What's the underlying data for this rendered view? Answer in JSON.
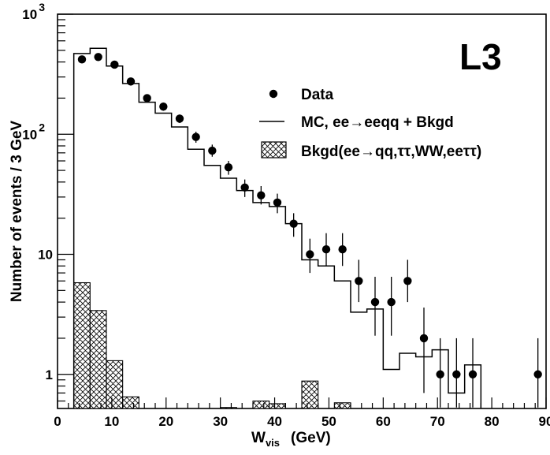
{
  "chart_data": {
    "type": "histogram",
    "experiment_label": "L3",
    "xlabel": {
      "main": "W",
      "sub": "vis",
      "unit": "(GeV)"
    },
    "ylabel": "Number of events / 3 GeV",
    "xlim": [
      0,
      90
    ],
    "ylim": [
      0.52,
      1000
    ],
    "y_scale": "log",
    "x_ticks": [
      0,
      10,
      20,
      30,
      40,
      50,
      60,
      70,
      80,
      90
    ],
    "x_tick_labels": [
      "0",
      "10",
      "20",
      "30",
      "40",
      "50",
      "60",
      "70",
      "80",
      "90"
    ],
    "y_ticks": [
      {
        "value": 1,
        "label": "1",
        "exp": ""
      },
      {
        "value": 10,
        "label": "10",
        "exp": ""
      },
      {
        "value": 100,
        "label": "10",
        "exp": "2"
      },
      {
        "value": 1000,
        "label": "10",
        "exp": "3"
      }
    ],
    "bin_width": 3,
    "legend": {
      "position": "upper-right",
      "entries": [
        {
          "marker": "dot",
          "label": "Data"
        },
        {
          "marker": "line",
          "label": "MC, ee→eeqq + Bkgd"
        },
        {
          "marker": "hatched-box",
          "label": "Bkgd(ee→qq,ττ,WW,eeττ)"
        }
      ]
    },
    "series": [
      {
        "key": "data",
        "style": "points-with-errors",
        "x": [
          4.5,
          7.5,
          10.5,
          13.5,
          16.5,
          19.5,
          22.5,
          25.5,
          28.5,
          31.5,
          34.5,
          37.5,
          40.5,
          43.5,
          46.5,
          49.5,
          52.5,
          55.5,
          58.5,
          61.5,
          64.5,
          67.5,
          70.5,
          73.5,
          76.5,
          88.5
        ],
        "y": [
          420,
          440,
          380,
          275,
          200,
          170,
          135,
          95,
          73,
          53,
          36,
          31,
          27,
          18,
          10,
          11,
          11,
          6,
          4,
          4,
          6,
          2,
          1,
          1,
          1,
          1
        ],
        "y_low": [
          400,
          419,
          361,
          259,
          186,
          157,
          124,
          85,
          65,
          46,
          30,
          26,
          22,
          14,
          7,
          8,
          8,
          4,
          2.1,
          2.1,
          4,
          0.7,
          0.53,
          0.53,
          0.53,
          0.53
        ],
        "y_high": [
          440,
          461,
          399,
          291,
          214,
          183,
          146,
          105,
          82,
          60,
          42,
          37,
          32,
          22,
          13.5,
          15,
          15,
          9,
          6.5,
          6.5,
          9,
          3.6,
          2.0,
          2.0,
          2.0,
          2.0
        ]
      },
      {
        "key": "mc",
        "style": "step",
        "edges": [
          3,
          6,
          9,
          12,
          15,
          18,
          21,
          24,
          27,
          30,
          33,
          36,
          39,
          42,
          45,
          48,
          51,
          54,
          57,
          60,
          63,
          66,
          69,
          72,
          75,
          78
        ],
        "values": [
          470,
          520,
          370,
          265,
          185,
          150,
          115,
          75,
          55,
          43,
          34,
          27,
          25,
          18,
          9,
          8,
          6,
          3.3,
          3.5,
          1.1,
          1.5,
          1.4,
          1.6,
          0.7,
          1.2
        ]
      },
      {
        "key": "bkgd",
        "style": "hatched-step",
        "bins": [
          {
            "x0": 3,
            "x1": 6,
            "y": 5.8
          },
          {
            "x0": 6,
            "x1": 9,
            "y": 3.4
          },
          {
            "x0": 9,
            "x1": 12,
            "y": 1.3
          },
          {
            "x0": 12,
            "x1": 15,
            "y": 0.65
          },
          {
            "x0": 30,
            "x1": 33,
            "y": 0.53
          },
          {
            "x0": 36,
            "x1": 39,
            "y": 0.6
          },
          {
            "x0": 39,
            "x1": 42,
            "y": 0.57
          },
          {
            "x0": 45,
            "x1": 48,
            "y": 0.88
          },
          {
            "x0": 51,
            "x1": 54,
            "y": 0.58
          }
        ]
      }
    ]
  }
}
